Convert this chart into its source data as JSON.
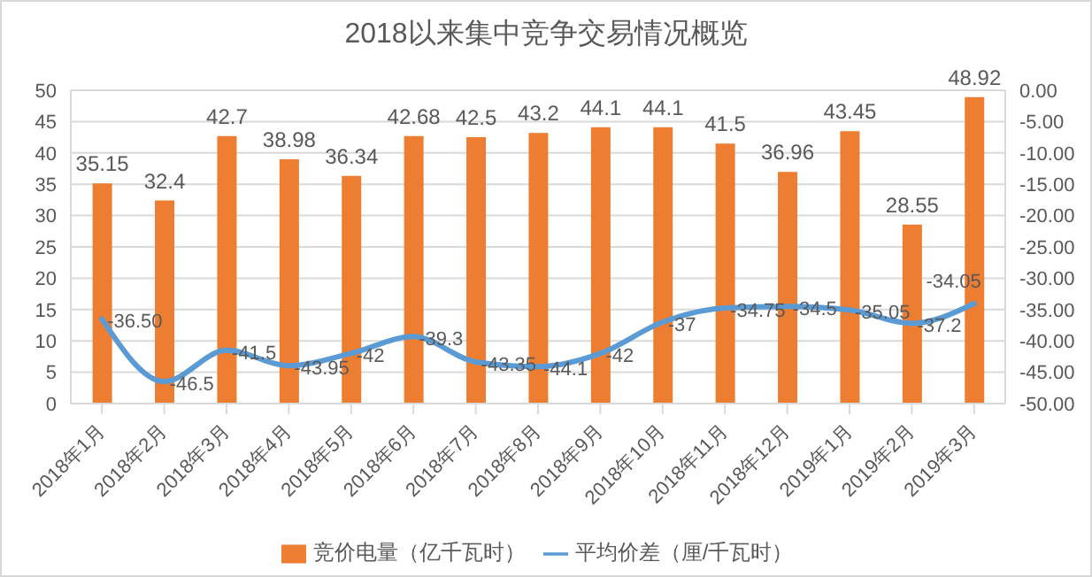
{
  "chart_data": {
    "type": "bar",
    "title": "2018以来集中竞争交易情况概览",
    "categories": [
      "2018年1月",
      "2018年2月",
      "2018年3月",
      "2018年4月",
      "2018年5月",
      "2018年6月",
      "2018年7月",
      "2018年8月",
      "2018年9月",
      "2018年10月",
      "2018年11月",
      "2018年12月",
      "2019年1月",
      "2019年2月",
      "2019年3月"
    ],
    "series": [
      {
        "name": "竞价电量（亿千瓦时）",
        "color": "#ed7d31",
        "values": [
          35.15,
          32.4,
          42.7,
          38.98,
          36.34,
          42.68,
          42.5,
          43.2,
          44.1,
          44.1,
          41.5,
          36.96,
          43.45,
          28.55,
          48.92
        ],
        "value_labels": [
          "35.15",
          "32.4",
          "42.7",
          "38.98",
          "36.34",
          "42.68",
          "42.5",
          "43.2",
          "44.1",
          "44.1",
          "41.5",
          "36.96",
          "43.45",
          "28.55",
          "48.92"
        ]
      },
      {
        "name": "平均价差（厘/千瓦时）",
        "type": "line",
        "axis": "y2",
        "color": "#5b9bd5",
        "values": [
          -36.5,
          -46.5,
          -41.5,
          -43.95,
          -42,
          -39.3,
          -43.35,
          -44.1,
          -42,
          -37,
          -34.75,
          -34.5,
          -35.05,
          -37.2,
          -34.05
        ],
        "value_labels": [
          "-36.50",
          "-46.5",
          "-41.5",
          "-43.95",
          "-42",
          "-39.3",
          "-43.35",
          "-44.1",
          "-42",
          "-37",
          "-34.75",
          "-34.5",
          "-35.05",
          "-37.2",
          "-34.05"
        ]
      }
    ],
    "ylim": [
      0,
      50
    ],
    "yticks": [
      0,
      5,
      10,
      15,
      20,
      25,
      30,
      35,
      40,
      45,
      50
    ],
    "y2lim": [
      -50,
      0
    ],
    "y2ticks": [
      {
        "value": -50,
        "label": "-50.00"
      },
      {
        "value": -45,
        "label": "-45.00"
      },
      {
        "value": -40,
        "label": "-40.00"
      },
      {
        "value": -35,
        "label": "-35.00"
      },
      {
        "value": -30,
        "label": "-30.00"
      },
      {
        "value": -25,
        "label": "-25.00"
      },
      {
        "value": -20,
        "label": "-20.00"
      },
      {
        "value": -15,
        "label": "-15.00"
      },
      {
        "value": -10,
        "label": "-10.00"
      },
      {
        "value": -5,
        "label": "-5.00"
      },
      {
        "value": 0,
        "label": "0.00"
      }
    ],
    "grid": "y",
    "legend": "bottom",
    "marker": "none",
    "line_style": "solid"
  }
}
